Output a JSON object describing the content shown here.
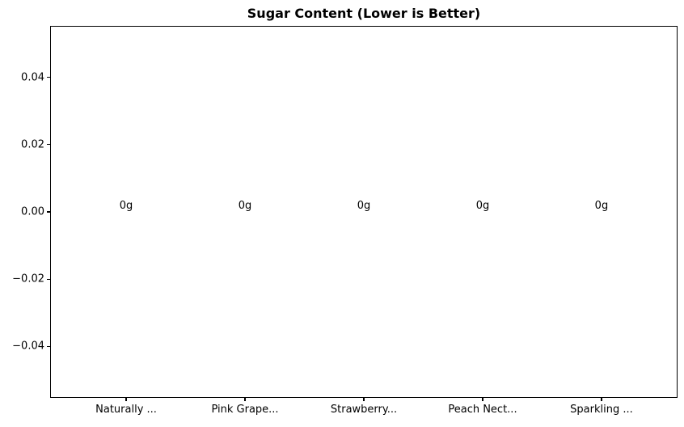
{
  "chart_data": {
    "type": "bar",
    "title": "Sugar Content (Lower is Better)",
    "categories": [
      "Naturally ...",
      "Pink Grape...",
      "Strawberry...",
      "Peach Nect...",
      "Sparkling ..."
    ],
    "values": [
      0,
      0,
      0,
      0,
      0
    ],
    "bar_labels": [
      "0g",
      "0g",
      "0g",
      "0g",
      "0g"
    ],
    "value_unit": "g",
    "xlabel": "",
    "ylabel": "",
    "yticks": [
      0.04,
      0.02,
      0,
      -0.02,
      -0.04
    ],
    "ytick_labels": [
      "0.04",
      "0.02",
      "0.00",
      "−0.02",
      "−0.04"
    ],
    "ylim": [
      -0.0553,
      0.0553
    ],
    "xlim": [
      -0.64,
      4.64
    ],
    "bar_width_units": 0.8,
    "grid": false,
    "legend": null,
    "colors": {
      "text": "#000000",
      "axis": "#000000",
      "background": "#ffffff"
    }
  }
}
